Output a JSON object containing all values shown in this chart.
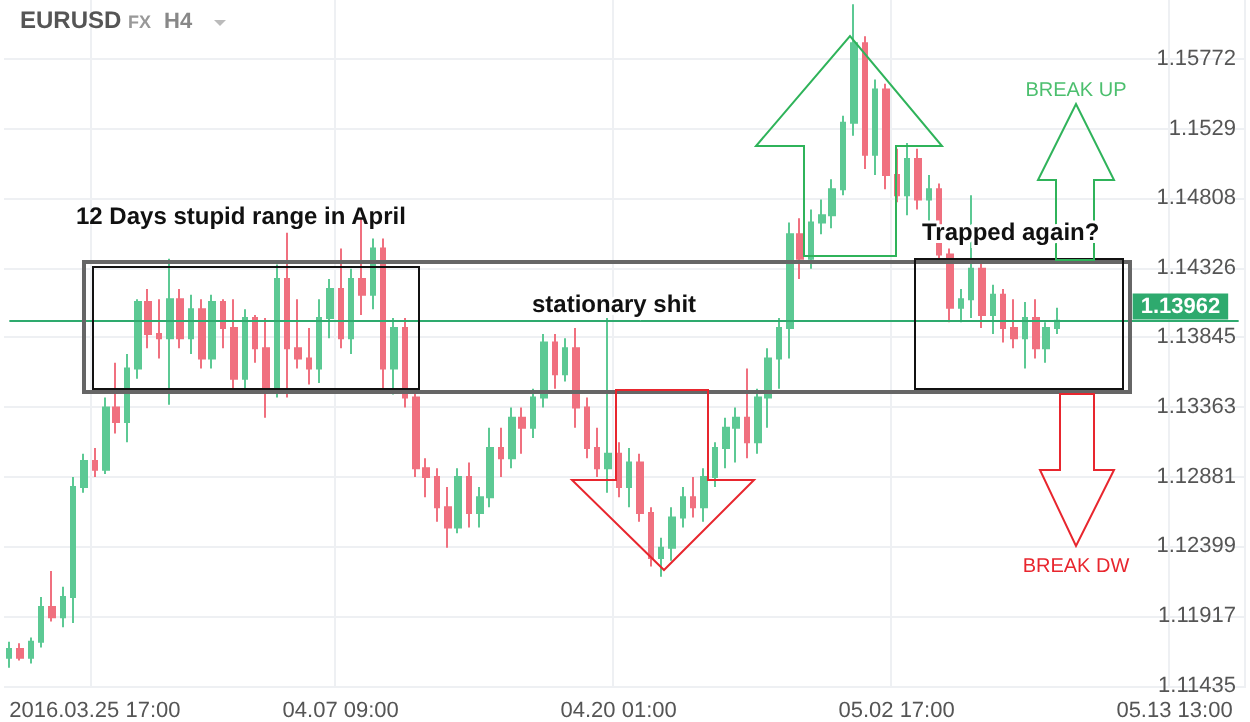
{
  "chart_data": {
    "type": "candlestick",
    "title": "EURUSD",
    "subtitle": "FX",
    "categories": [
      null,
      null,
      null,
      null,
      null,
      null,
      null,
      null,
      "2016.03.25 17:00",
      null,
      null,
      null,
      null,
      null,
      null,
      null,
      null,
      null,
      null,
      null,
      null,
      null,
      null,
      null,
      null,
      null,
      null,
      null,
      null,
      null,
      null,
      "04.07 09:00",
      null,
      null,
      null,
      null,
      null,
      null,
      null,
      null,
      null,
      null,
      null,
      null,
      null,
      null,
      null,
      null,
      null,
      null,
      null,
      null,
      null,
      null,
      null,
      null,
      null,
      "04.20 01:00",
      null,
      null,
      null,
      null,
      null,
      null,
      null,
      null,
      null,
      null,
      null,
      null,
      null,
      null,
      null,
      null,
      null,
      null,
      null,
      null,
      null,
      null,
      null,
      null,
      null,
      "05.02 17:00",
      null,
      null,
      null,
      null,
      null,
      null,
      null,
      null,
      null,
      null,
      null,
      null,
      null,
      null,
      null,
      null,
      null,
      null,
      null,
      null,
      null,
      null,
      null,
      null,
      null,
      "05.13 13:00",
      null,
      null,
      null,
      null,
      null,
      null
    ],
    "ohlc": [
      [
        1.1163,
        1.1174,
        1.1156,
        1.1169
      ],
      [
        1.1169,
        1.1173,
        1.1161,
        1.1163
      ],
      [
        1.1163,
        1.1177,
        1.1159,
        1.1174
      ],
      [
        1.1174,
        1.1205,
        1.117,
        1.1198
      ],
      [
        1.1198,
        1.1223,
        1.1188,
        1.1191
      ],
      [
        1.1191,
        1.1212,
        1.1184,
        1.1205
      ],
      [
        1.1205,
        1.1288,
        1.1187,
        1.1281
      ],
      [
        1.1281,
        1.1304,
        1.1277,
        1.1299
      ],
      [
        1.1299,
        1.1308,
        1.1288,
        1.1293
      ],
      [
        1.1293,
        1.1343,
        1.129,
        1.1336
      ],
      [
        1.1336,
        1.1367,
        1.1318,
        1.1326
      ],
      [
        1.1326,
        1.1373,
        1.1312,
        1.1363
      ],
      [
        1.1363,
        1.1411,
        1.1356,
        1.1409
      ],
      [
        1.1409,
        1.1418,
        1.1377,
        1.1387
      ],
      [
        1.1387,
        1.1411,
        1.137,
        1.1384
      ],
      [
        1.1384,
        1.1439,
        1.1338,
        1.1411
      ],
      [
        1.1411,
        1.1418,
        1.1377,
        1.1384
      ],
      [
        1.1384,
        1.1414,
        1.1373,
        1.1404
      ],
      [
        1.1404,
        1.1411,
        1.1363,
        1.137
      ],
      [
        1.137,
        1.1414,
        1.1363,
        1.1409
      ],
      [
        1.1409,
        1.1411,
        1.1377,
        1.1391
      ],
      [
        1.1391,
        1.1411,
        1.1347,
        1.1356
      ],
      [
        1.1356,
        1.1404,
        1.1349,
        1.1398
      ],
      [
        1.1398,
        1.14,
        1.1367,
        1.1377
      ],
      [
        1.1377,
        1.1398,
        1.1329,
        1.1349
      ],
      [
        1.1349,
        1.1435,
        1.1343,
        1.1425
      ],
      [
        1.1425,
        1.1457,
        1.1343,
        1.1377
      ],
      [
        1.1377,
        1.1411,
        1.1363,
        1.137
      ],
      [
        1.137,
        1.1391,
        1.1352,
        1.1363
      ],
      [
        1.1363,
        1.1411,
        1.1353,
        1.1398
      ],
      [
        1.1398,
        1.1425,
        1.1384,
        1.1418
      ],
      [
        1.1418,
        1.1446,
        1.1377,
        1.1384
      ],
      [
        1.1384,
        1.1432,
        1.1373,
        1.1425
      ],
      [
        1.1425,
        1.1467,
        1.14,
        1.1414
      ],
      [
        1.1414,
        1.1453,
        1.1404,
        1.1446
      ],
      [
        1.1446,
        1.1453,
        1.1349,
        1.1363
      ],
      [
        1.1363,
        1.1398,
        1.1345,
        1.1391
      ],
      [
        1.1391,
        1.1398,
        1.1336,
        1.1343
      ],
      [
        1.1343,
        1.1349,
        1.1288,
        1.1294
      ],
      [
        1.1294,
        1.1301,
        1.1274,
        1.1288
      ],
      [
        1.1288,
        1.1294,
        1.1257,
        1.1267
      ],
      [
        1.1267,
        1.1281,
        1.1239,
        1.1253
      ],
      [
        1.1253,
        1.1294,
        1.1249,
        1.1288
      ],
      [
        1.1288,
        1.1298,
        1.1253,
        1.1263
      ],
      [
        1.1263,
        1.1281,
        1.1253,
        1.1274
      ],
      [
        1.1274,
        1.1322,
        1.1267,
        1.1308
      ],
      [
        1.1308,
        1.1322,
        1.1288,
        1.1301
      ],
      [
        1.1301,
        1.1336,
        1.1294,
        1.1329
      ],
      [
        1.1329,
        1.1336,
        1.1304,
        1.1322
      ],
      [
        1.1322,
        1.1349,
        1.1315,
        1.1343
      ],
      [
        1.1343,
        1.1387,
        1.1336,
        1.1381
      ],
      [
        1.1381,
        1.1387,
        1.1349,
        1.1359
      ],
      [
        1.1359,
        1.1384,
        1.1354,
        1.1377
      ],
      [
        1.1377,
        1.1391,
        1.1322,
        1.1336
      ],
      [
        1.1336,
        1.1343,
        1.1301,
        1.1308
      ],
      [
        1.1308,
        1.1322,
        1.1288,
        1.1294
      ],
      [
        1.1294,
        1.1398,
        1.1277,
        1.1304
      ],
      [
        1.1304,
        1.1312,
        1.1274,
        1.1281
      ],
      [
        1.1281,
        1.1308,
        1.1267,
        1.1298
      ],
      [
        1.1298,
        1.1304,
        1.1257,
        1.1263
      ],
      [
        1.1263,
        1.1267,
        1.1226,
        1.1232
      ],
      [
        1.1232,
        1.1246,
        1.1219,
        1.1239
      ],
      [
        1.1239,
        1.1267,
        1.123,
        1.126
      ],
      [
        1.126,
        1.1281,
        1.1253,
        1.1274
      ],
      [
        1.1274,
        1.1288,
        1.126,
        1.1267
      ],
      [
        1.1267,
        1.1294,
        1.1257,
        1.1288
      ],
      [
        1.1288,
        1.1312,
        1.1281,
        1.1308
      ],
      [
        1.1308,
        1.1329,
        1.1294,
        1.1322
      ],
      [
        1.1322,
        1.1336,
        1.1298,
        1.1329
      ],
      [
        1.1329,
        1.1363,
        1.1301,
        1.1312
      ],
      [
        1.1312,
        1.1349,
        1.1304,
        1.1343
      ],
      [
        1.1343,
        1.1377,
        1.1322,
        1.137
      ],
      [
        1.137,
        1.1398,
        1.1349,
        1.1391
      ],
      [
        1.1391,
        1.1464,
        1.137,
        1.1456
      ],
      [
        1.1456,
        1.1467,
        1.1425,
        1.1439
      ],
      [
        1.1439,
        1.1473,
        1.1432,
        1.1464
      ],
      [
        1.1464,
        1.148,
        1.1456,
        1.1469
      ],
      [
        1.1469,
        1.1494,
        1.146,
        1.1487
      ],
      [
        1.1487,
        1.1538,
        1.1483,
        1.1533
      ],
      [
        1.1533,
        1.1615,
        1.1524,
        1.1588
      ],
      [
        1.1588,
        1.1593,
        1.1501,
        1.1511
      ],
      [
        1.1511,
        1.1563,
        1.1497,
        1.1556
      ],
      [
        1.1556,
        1.156,
        1.1487,
        1.1497
      ],
      [
        1.1497,
        1.1515,
        1.1478,
        1.1483
      ],
      [
        1.1483,
        1.1519,
        1.1469,
        1.1508
      ],
      [
        1.1508,
        1.1515,
        1.1473,
        1.148
      ],
      [
        1.148,
        1.1497,
        1.1464,
        1.1487
      ],
      [
        1.1487,
        1.1491,
        1.1436,
        1.1442
      ],
      [
        1.1442,
        1.1446,
        1.1395,
        1.1405
      ],
      [
        1.1405,
        1.1418,
        1.1395,
        1.1411
      ],
      [
        1.1411,
        1.1483,
        1.1398,
        1.1432
      ],
      [
        1.1432,
        1.1439,
        1.1391,
        1.14
      ],
      [
        1.14,
        1.1421,
        1.1387,
        1.1414
      ],
      [
        1.1414,
        1.1418,
        1.1381,
        1.1391
      ],
      [
        1.1391,
        1.1411,
        1.1377,
        1.1384
      ],
      [
        1.1384,
        1.1409,
        1.1363,
        1.1398
      ],
      [
        1.1398,
        1.1411,
        1.137,
        1.1377
      ],
      [
        1.1377,
        1.1395,
        1.1367,
        1.1391
      ],
      [
        1.1391,
        1.1405,
        1.1387,
        1.1396
      ],
      null,
      null,
      null,
      null,
      null,
      null,
      null,
      null,
      null,
      null,
      null,
      null,
      null,
      null,
      null,
      null,
      null
    ],
    "colors": [
      "#5cc994",
      "#f0707f",
      "#5cc994",
      "#5cc994",
      "#f0707f",
      "#5cc994",
      "#5cc994",
      "#5cc994",
      "#f0707f",
      "#5cc994",
      "#f0707f",
      "#5cc994",
      "#5cc994",
      "#f0707f",
      "#f0707f",
      "#5cc994",
      "#f0707f",
      "#5cc994",
      "#f0707f",
      "#5cc994",
      "#f0707f",
      "#f0707f",
      "#5cc994",
      "#f0707f",
      "#f0707f",
      "#5cc994",
      "#f0707f",
      "#f0707f",
      "#f0707f",
      "#5cc994",
      "#5cc994",
      "#f0707f",
      "#5cc994",
      "#f0707f",
      "#5cc994",
      "#f0707f",
      "#5cc994",
      "#f0707f",
      "#f0707f",
      "#f0707f",
      "#f0707f",
      "#f0707f",
      "#5cc994",
      "#f0707f",
      "#5cc994",
      "#5cc994",
      "#f0707f",
      "#5cc994",
      "#f0707f",
      "#5cc994",
      "#5cc994",
      "#f0707f",
      "#5cc994",
      "#f0707f",
      "#f0707f",
      "#f0707f",
      "#5cc994",
      "#f0707f",
      "#5cc994",
      "#f0707f",
      "#f0707f",
      "#5cc994",
      "#5cc994",
      "#5cc994",
      "#f0707f",
      "#5cc994",
      "#5cc994",
      "#5cc994",
      "#5cc994",
      "#f0707f",
      "#5cc994",
      "#5cc994",
      "#5cc994",
      "#5cc994",
      "#f0707f",
      "#5cc994",
      "#5cc994",
      "#5cc994",
      "#5cc994",
      "#5cc994",
      "#f0707f",
      "#5cc994",
      "#f0707f",
      "#f0707f",
      "#5cc994",
      "#f0707f",
      "#5cc994",
      "#f0707f",
      "#f0707f",
      "#5cc994",
      "#5cc994",
      "#f0707f",
      "#5cc994",
      "#f0707f",
      "#f0707f",
      "#5cc994",
      "#f0707f",
      "#5cc994",
      "#5cc994",
      null,
      null,
      null,
      null,
      null,
      null,
      null,
      null,
      null,
      null,
      null,
      null,
      null,
      null,
      null,
      null,
      null
    ],
    "ylim": [
      1.1142,
      1.1618
    ],
    "yticks": [
      1.11435,
      1.11917,
      1.12399,
      1.12881,
      1.13363,
      1.13845,
      1.14326,
      1.14808,
      1.1529,
      1.15772
    ],
    "grid": true,
    "ref_lines": [
      {
        "axis": "y",
        "value": 1.13962,
        "label": "1.13962",
        "color": "#2eaa6e"
      }
    ],
    "annotations": [
      "H4",
      "12 Days stupid range in April",
      "stationary shit",
      "Trapped again?",
      "BREAK UP",
      "BREAK DW"
    ]
  }
}
